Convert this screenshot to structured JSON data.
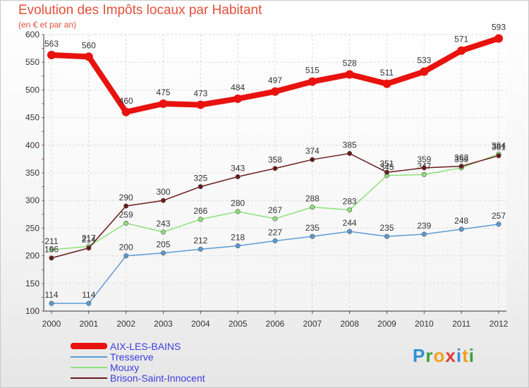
{
  "title": "Evolution des Impôts locaux par Habitant",
  "subtitle": "(en € et par an)",
  "logo": {
    "letters": [
      "P",
      "r",
      "o",
      "x",
      "i",
      "t",
      "i"
    ],
    "colors": [
      "#2e8fd6",
      "#3aa23a",
      "#f0a020",
      "#e03a3a",
      "#2e8fd6",
      "#f0a020",
      "#3aa23a"
    ]
  },
  "chart_data": {
    "type": "line",
    "title": "Evolution des Impôts locaux par Habitant",
    "ylabel": "(en € et par an)",
    "xlabel": "",
    "x": [
      "2000",
      "2001",
      "2002",
      "2003",
      "2004",
      "2005",
      "2006",
      "2007",
      "2008",
      "2009",
      "2010",
      "2011",
      "2012"
    ],
    "yticks": [
      100,
      150,
      200,
      250,
      300,
      350,
      400,
      450,
      500,
      550,
      600
    ],
    "ylim": [
      100,
      600
    ],
    "grid": true,
    "legend": "bottom-left",
    "series": [
      {
        "name": "AIX-LES-BAINS",
        "color": "#e8120e",
        "values": [
          563,
          560,
          460,
          475,
          473,
          484,
          497,
          515,
          528,
          511,
          533,
          571,
          593
        ]
      },
      {
        "name": "Tresserve",
        "color": "#5b9bd5",
        "values": [
          114,
          114,
          200,
          205,
          212,
          218,
          227,
          235,
          244,
          235,
          239,
          248,
          257
        ]
      },
      {
        "name": "Mouxy",
        "color": "#8ee07a",
        "values": [
          211,
          217,
          259,
          243,
          266,
          280,
          267,
          288,
          283,
          345,
          347,
          359,
          384
        ]
      },
      {
        "name": "Brison-Saint-Innocent",
        "color": "#6b1a1a",
        "values": [
          196,
          214,
          290,
          300,
          325,
          343,
          358,
          374,
          385,
          351,
          359,
          362,
          381
        ]
      }
    ]
  }
}
